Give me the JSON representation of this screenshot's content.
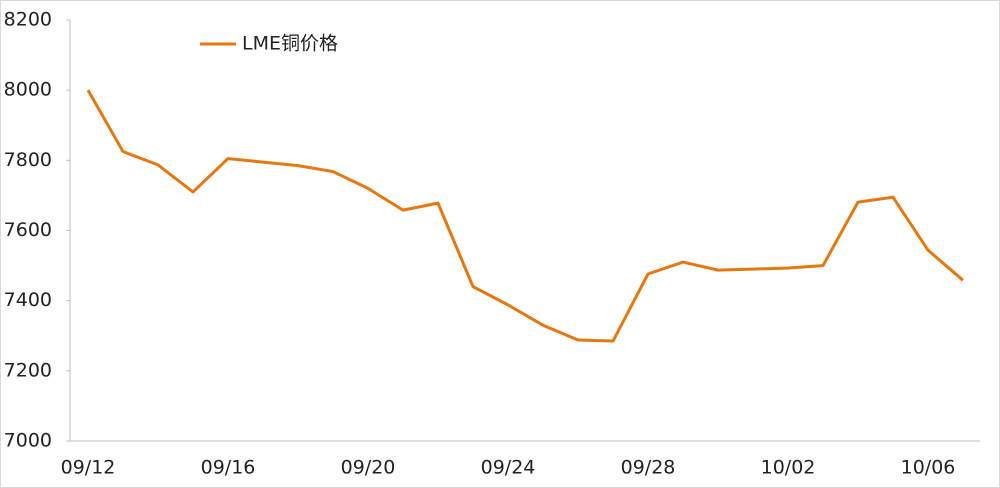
{
  "chart_data": {
    "type": "line",
    "categories": [
      "09/12",
      null,
      null,
      null,
      "09/16",
      null,
      null,
      null,
      "09/20",
      null,
      null,
      null,
      "09/24",
      null,
      null,
      null,
      "09/28",
      null,
      null,
      null,
      "10/02",
      null,
      null,
      null,
      "10/06",
      null
    ],
    "series": [
      {
        "name": "LME铜价格",
        "color": "#e8770f",
        "values": [
          8000,
          7825,
          7787,
          7710,
          7805,
          7795,
          7785,
          7768,
          7720,
          7658,
          7678,
          7440,
          7388,
          7330,
          7288,
          7285,
          7476,
          7510,
          7487,
          7490,
          7493,
          7500,
          7681,
          7695,
          7544,
          7458
        ]
      }
    ],
    "ylim": [
      7000,
      8200
    ],
    "yticks": [
      7000,
      7200,
      7400,
      7600,
      7800,
      8000,
      8200
    ],
    "grid": false,
    "legend": "top-left"
  }
}
